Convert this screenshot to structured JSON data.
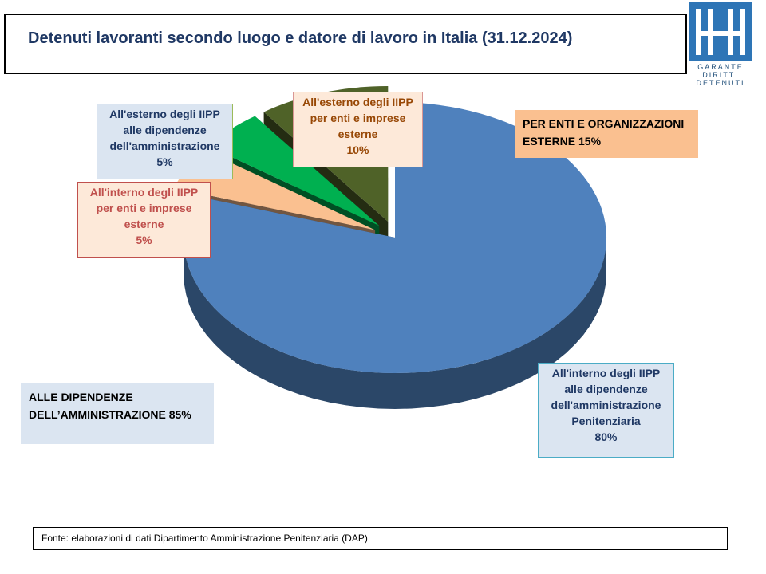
{
  "title": "Detenuti lavoranti secondo luogo e datore di lavoro in Italia (31.12.2024)",
  "logo": {
    "text_lines": [
      "GARANTE",
      "DIRITTI",
      "DETENUTI"
    ],
    "color": "#1f4e79"
  },
  "summary": {
    "external": {
      "line1": "PER ENTI E ORGANIZZAZIONI",
      "line2": "ESTERNE 15%",
      "color": "#fac090"
    },
    "administration": {
      "line1": "ALLE DIPENDENZE",
      "line2": "DELL’AMMINISTRAZIONE 85%",
      "color": "#dbe5f1"
    }
  },
  "labels": {
    "int_admin": {
      "l1": "All'interno degli IIPP",
      "l2": "alle dipendenze",
      "l3": "dell'amministrazione",
      "l4": "Penitenziaria",
      "pct": "80%"
    },
    "int_firms": {
      "l1": "All'interno degli IIPP",
      "l2": "per enti e imprese",
      "l3": "esterne",
      "pct": "5%"
    },
    "ext_admin": {
      "l1": "All'esterno degli IIPP",
      "l2": "alle dipendenze",
      "l3": "dell'amministrazione",
      "pct": "5%"
    },
    "ext_firms": {
      "l1": "All'esterno degli IIPP",
      "l2": "per enti e imprese",
      "l3": "esterne",
      "pct": "10%"
    }
  },
  "source": "Fonte: elaborazioni di dati Dipartimento Amministrazione Penitenziaria (DAP)",
  "chart_data": {
    "type": "pie",
    "title": "Detenuti lavoranti secondo luogo e datore di lavoro in Italia (31.12.2024)",
    "categories": [
      "All'interno degli IIPP alle dipendenze dell'amministrazione Penitenziaria",
      "All'interno degli IIPP per enti e imprese esterne",
      "All'esterno degli IIPP alle dipendenze dell'amministrazione",
      "All'esterno degli IIPP per enti e imprese esterne"
    ],
    "values": [
      80,
      5,
      5,
      10
    ],
    "unit": "%",
    "colors": [
      "#4f81bd",
      "#fac090",
      "#00b050",
      "#4f6228"
    ],
    "exploded": [
      false,
      true,
      true,
      true
    ]
  }
}
